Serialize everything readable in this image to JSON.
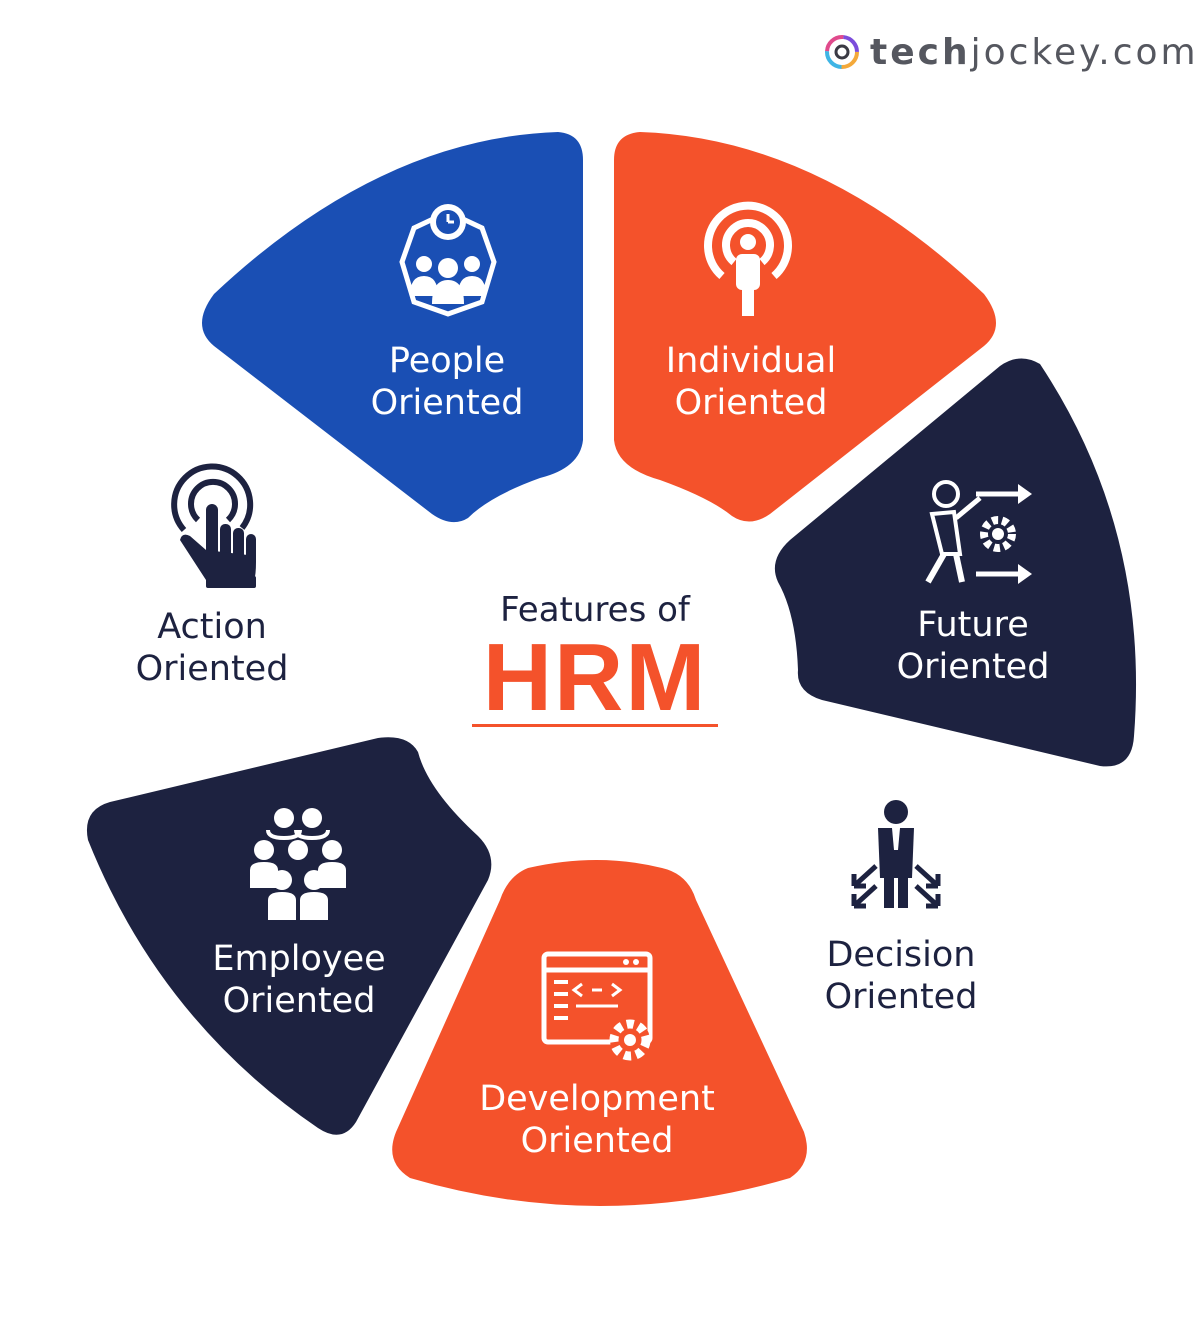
{
  "logo": {
    "prefix": "tech",
    "suffix": "jockey.com"
  },
  "center": {
    "subtitle": "Features of",
    "title": "HRM"
  },
  "colors": {
    "blue": "#1a4fb4",
    "orange": "#f4522b",
    "navy": "#1d2240",
    "white": "#ffffff"
  },
  "features": [
    {
      "line1": "People",
      "line2": "Oriented",
      "icon": "team-clock-icon"
    },
    {
      "line1": "Individual",
      "line2": "Oriented",
      "icon": "target-person-icon"
    },
    {
      "line1": "Future",
      "line2": "Oriented",
      "icon": "person-gear-arrows-icon"
    },
    {
      "line1": "Decision",
      "line2": "Oriented",
      "icon": "businessman-arrows-icon"
    },
    {
      "line1": "Development",
      "line2": "Oriented",
      "icon": "code-window-gear-icon"
    },
    {
      "line1": "Employee",
      "line2": "Oriented",
      "icon": "employee-group-icon"
    },
    {
      "line1": "Action",
      "line2": "Oriented",
      "icon": "touch-hand-icon"
    }
  ]
}
